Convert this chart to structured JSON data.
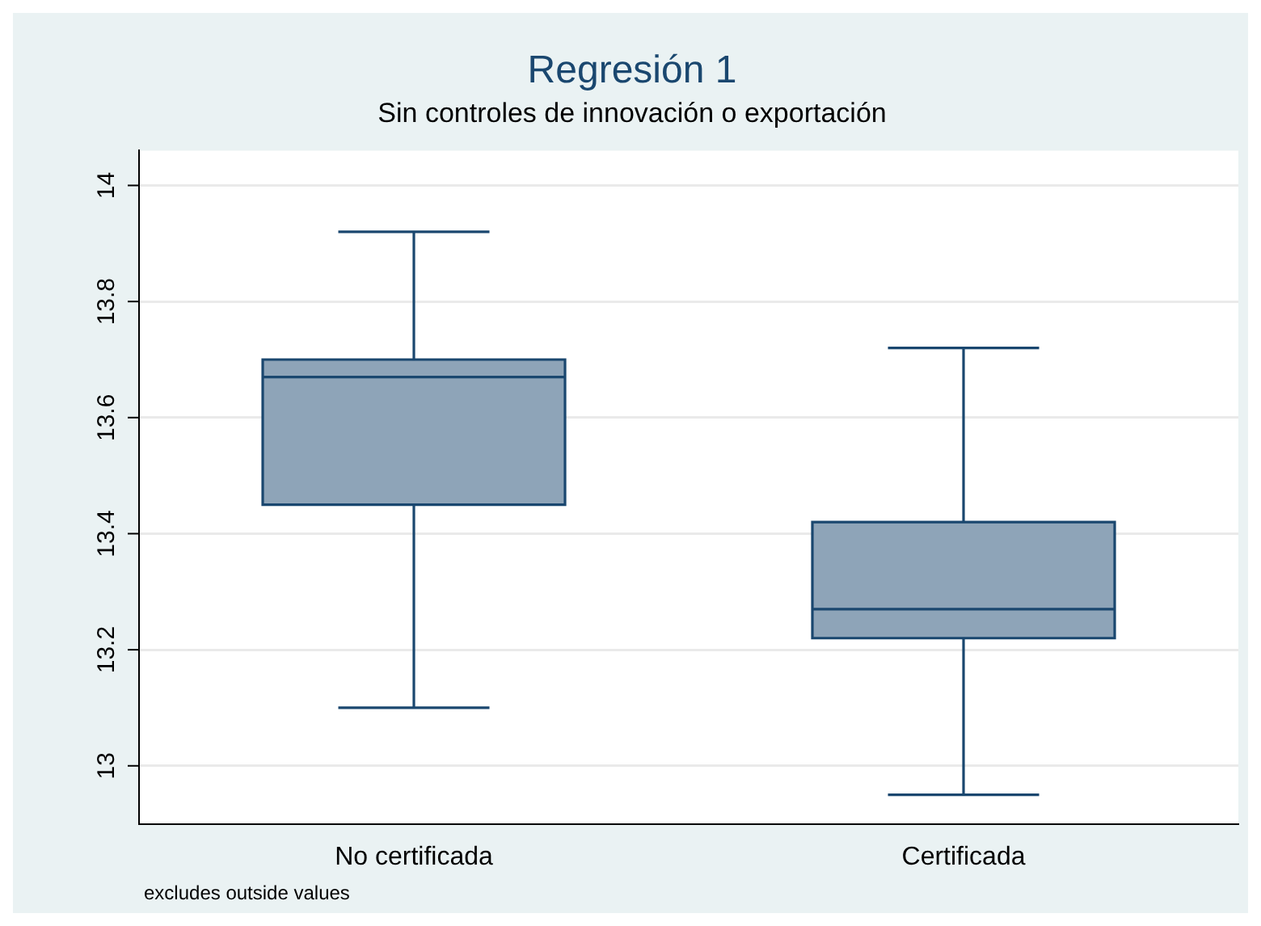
{
  "chart_data": {
    "type": "box",
    "title": "Regresión 1",
    "subtitle": "Sin controles de innovación o exportación",
    "categories": [
      "No certificada",
      "Certificada"
    ],
    "boxes": [
      {
        "low": 13.1,
        "q1": 13.45,
        "median": 13.67,
        "q3": 13.7,
        "high": 13.92
      },
      {
        "low": 12.95,
        "q1": 13.22,
        "median": 13.27,
        "q3": 13.42,
        "high": 13.72
      }
    ],
    "color": "#8ea4b8",
    "ylim": [
      12.9,
      14.06
    ],
    "yticks": [
      13,
      13.2,
      13.4,
      13.6,
      13.8,
      14
    ],
    "grid": "y",
    "legend": false,
    "annotations": [
      "excludes outside values"
    ]
  }
}
